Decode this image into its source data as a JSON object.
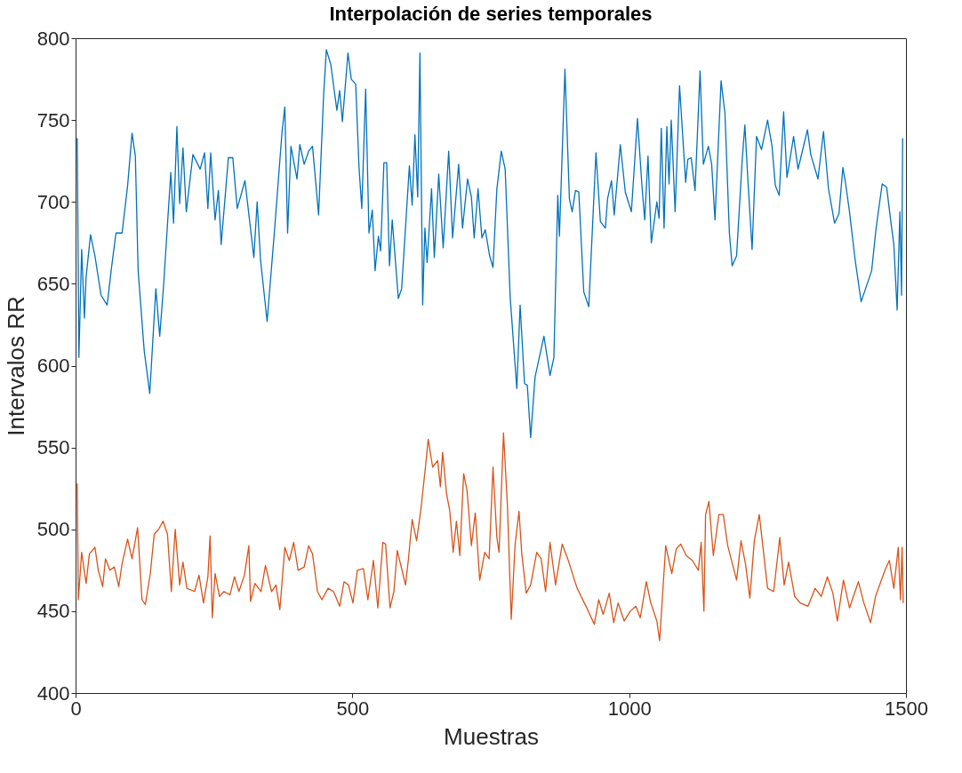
{
  "chart_data": {
    "type": "line",
    "title": "Interpolación de series temporales",
    "xlabel": "Muestras",
    "ylabel": "Intervalos RR",
    "xlim": [
      0,
      1500
    ],
    "ylim": [
      400,
      800
    ],
    "xticks": [
      0,
      500,
      1000,
      1500
    ],
    "yticks": [
      400,
      450,
      500,
      550,
      600,
      650,
      700,
      750,
      800
    ],
    "grid": false,
    "legend": false,
    "marker": "none",
    "line_style": "solid",
    "series": [
      {
        "color": "#0072bd",
        "x": [
          3,
          6,
          11,
          16,
          19,
          27,
          35,
          46,
          57,
          65,
          73,
          84,
          94,
          102,
          108,
          113,
          124,
          134,
          145,
          152,
          159,
          172,
          177,
          183,
          188,
          194,
          200,
          212,
          225,
          233,
          239,
          244,
          252,
          258,
          263,
          276,
          284,
          292,
          306,
          322,
          328,
          334,
          346,
          359,
          373,
          378,
          383,
          389,
          400,
          405,
          413,
          421,
          428,
          439,
          448,
          453,
          461,
          472,
          477,
          482,
          492,
          498,
          506,
          512,
          517,
          524,
          530,
          536,
          541,
          547,
          551,
          557,
          562,
          567,
          572,
          583,
          589,
          603,
          608,
          613,
          618,
          622,
          627,
          631,
          635,
          643,
          648,
          656,
          664,
          674,
          681,
          692,
          699,
          708,
          715,
          720,
          727,
          734,
          740,
          748,
          754,
          761,
          769,
          776,
          785,
          797,
          803,
          811,
          816,
          822,
          830,
          846,
          857,
          864,
          871,
          874,
          884,
          892,
          897,
          903,
          909,
          918,
          927,
          940,
          948,
          957,
          961,
          968,
          973,
          984,
          993,
          1004,
          1015,
          1023,
          1028,
          1034,
          1040,
          1050,
          1054,
          1058,
          1063,
          1068,
          1072,
          1076,
          1083,
          1091,
          1102,
          1106,
          1112,
          1119,
          1128,
          1134,
          1143,
          1149,
          1155,
          1166,
          1173,
          1181,
          1186,
          1194,
          1204,
          1209,
          1214,
          1222,
          1230,
          1239,
          1250,
          1258,
          1264,
          1271,
          1279,
          1285,
          1289,
          1297,
          1305,
          1310,
          1322,
          1328,
          1341,
          1351,
          1360,
          1371,
          1379,
          1386,
          1391,
          1398,
          1408,
          1419,
          1430,
          1438,
          1446,
          1457,
          1465,
          1473,
          1478,
          1484,
          1489,
          1492,
          1494
        ],
        "values": [
          739,
          605,
          671,
          629,
          654,
          680,
          667,
          643,
          637,
          660,
          681,
          681,
          710,
          742,
          728,
          658,
          609,
          583,
          647,
          618,
          649,
          718,
          687,
          746,
          699,
          733,
          694,
          729,
          720,
          730,
          696,
          730,
          689,
          707,
          674,
          727,
          727,
          696,
          713,
          666,
          700,
          665,
          627,
          681,
          743,
          758,
          681,
          734,
          714,
          735,
          723,
          731,
          734,
          692,
          765,
          793,
          784,
          756,
          768,
          749,
          791,
          775,
          772,
          721,
          696,
          769,
          681,
          695,
          658,
          679,
          670,
          724,
          724,
          661,
          689,
          641,
          647,
          722,
          698,
          741,
          703,
          791,
          637,
          684,
          663,
          708,
          666,
          717,
          672,
          731,
          678,
          723,
          684,
          714,
          703,
          678,
          708,
          678,
          683,
          667,
          660,
          708,
          731,
          720,
          642,
          586,
          637,
          589,
          588,
          556,
          593,
          618,
          594,
          605,
          704,
          679,
          781,
          702,
          694,
          707,
          706,
          645,
          636,
          730,
          688,
          684,
          702,
          713,
          692,
          735,
          706,
          694,
          751,
          710,
          689,
          728,
          675,
          700,
          690,
          745,
          684,
          746,
          711,
          750,
          694,
          771,
          712,
          726,
          727,
          707,
          780,
          723,
          734,
          723,
          689,
          774,
          754,
          681,
          661,
          667,
          725,
          747,
          716,
          671,
          740,
          732,
          750,
          734,
          710,
          704,
          755,
          715,
          723,
          740,
          720,
          727,
          744,
          729,
          714,
          743,
          708,
          687,
          693,
          721,
          711,
          694,
          665,
          639,
          650,
          658,
          684,
          711,
          709,
          687,
          674,
          634,
          694,
          643,
          739
        ]
      },
      {
        "color": "#d95319",
        "x": [
          3,
          5,
          11,
          19,
          25,
          35,
          41,
          49,
          54,
          62,
          70,
          78,
          84,
          94,
          102,
          112,
          120,
          126,
          135,
          142,
          150,
          158,
          166,
          173,
          180,
          188,
          194,
          201,
          215,
          223,
          231,
          239,
          243,
          247,
          252,
          260,
          268,
          279,
          287,
          295,
          305,
          313,
          316,
          324,
          335,
          343,
          354,
          362,
          369,
          378,
          386,
          394,
          402,
          413,
          421,
          428,
          437,
          445,
          456,
          466,
          477,
          485,
          493,
          501,
          509,
          520,
          528,
          538,
          546,
          555,
          560,
          568,
          575,
          581,
          589,
          596,
          601,
          608,
          616,
          624,
          632,
          637,
          645,
          654,
          659,
          663,
          670,
          676,
          682,
          688,
          694,
          701,
          707,
          715,
          722,
          730,
          739,
          747,
          754,
          761,
          765,
          773,
          780,
          787,
          794,
          801,
          806,
          814,
          822,
          833,
          841,
          849,
          857,
          867,
          879,
          889,
          906,
          922,
          937,
          945,
          953,
          964,
          972,
          980,
          991,
          1002,
          1012,
          1020,
          1031,
          1039,
          1050,
          1055,
          1066,
          1077,
          1085,
          1093,
          1103,
          1114,
          1125,
          1130,
          1135,
          1138,
          1144,
          1152,
          1162,
          1170,
          1178,
          1194,
          1202,
          1210,
          1218,
          1226,
          1235,
          1250,
          1261,
          1272,
          1280,
          1288,
          1299,
          1309,
          1323,
          1336,
          1347,
          1358,
          1368,
          1376,
          1387,
          1398,
          1414,
          1424,
          1436,
          1445,
          1462,
          1470,
          1478,
          1486,
          1490,
          1493,
          1495
        ],
        "values": [
          528,
          457,
          486,
          467,
          485,
          489,
          475,
          465,
          482,
          475,
          477,
          465,
          479,
          494,
          482,
          501,
          457,
          454,
          473,
          497,
          500,
          505,
          497,
          462,
          500,
          466,
          480,
          464,
          462,
          472,
          455,
          471,
          496,
          446,
          473,
          459,
          462,
          460,
          471,
          462,
          472,
          490,
          456,
          467,
          462,
          478,
          462,
          466,
          451,
          489,
          481,
          492,
          475,
          477,
          490,
          485,
          462,
          457,
          464,
          462,
          453,
          468,
          466,
          455,
          475,
          476,
          457,
          481,
          452,
          492,
          491,
          452,
          462,
          487,
          476,
          466,
          481,
          506,
          493,
          513,
          538,
          555,
          538,
          542,
          526,
          547,
          522,
          511,
          486,
          505,
          484,
          534,
          524,
          490,
          510,
          469,
          486,
          482,
          538,
          495,
          486,
          559,
          515,
          445,
          491,
          511,
          485,
          461,
          466,
          486,
          482,
          462,
          492,
          466,
          491,
          482,
          464,
          453,
          442,
          457,
          448,
          461,
          443,
          455,
          444,
          450,
          453,
          446,
          468,
          455,
          444,
          432,
          490,
          473,
          488,
          491,
          484,
          481,
          475,
          492,
          450,
          509,
          517,
          484,
          509,
          509,
          490,
          469,
          493,
          479,
          458,
          493,
          509,
          464,
          462,
          495,
          466,
          480,
          459,
          455,
          453,
          464,
          459,
          471,
          461,
          444,
          469,
          452,
          468,
          455,
          443,
          459,
          475,
          481,
          464,
          489,
          457,
          489,
          455
        ]
      }
    ]
  }
}
